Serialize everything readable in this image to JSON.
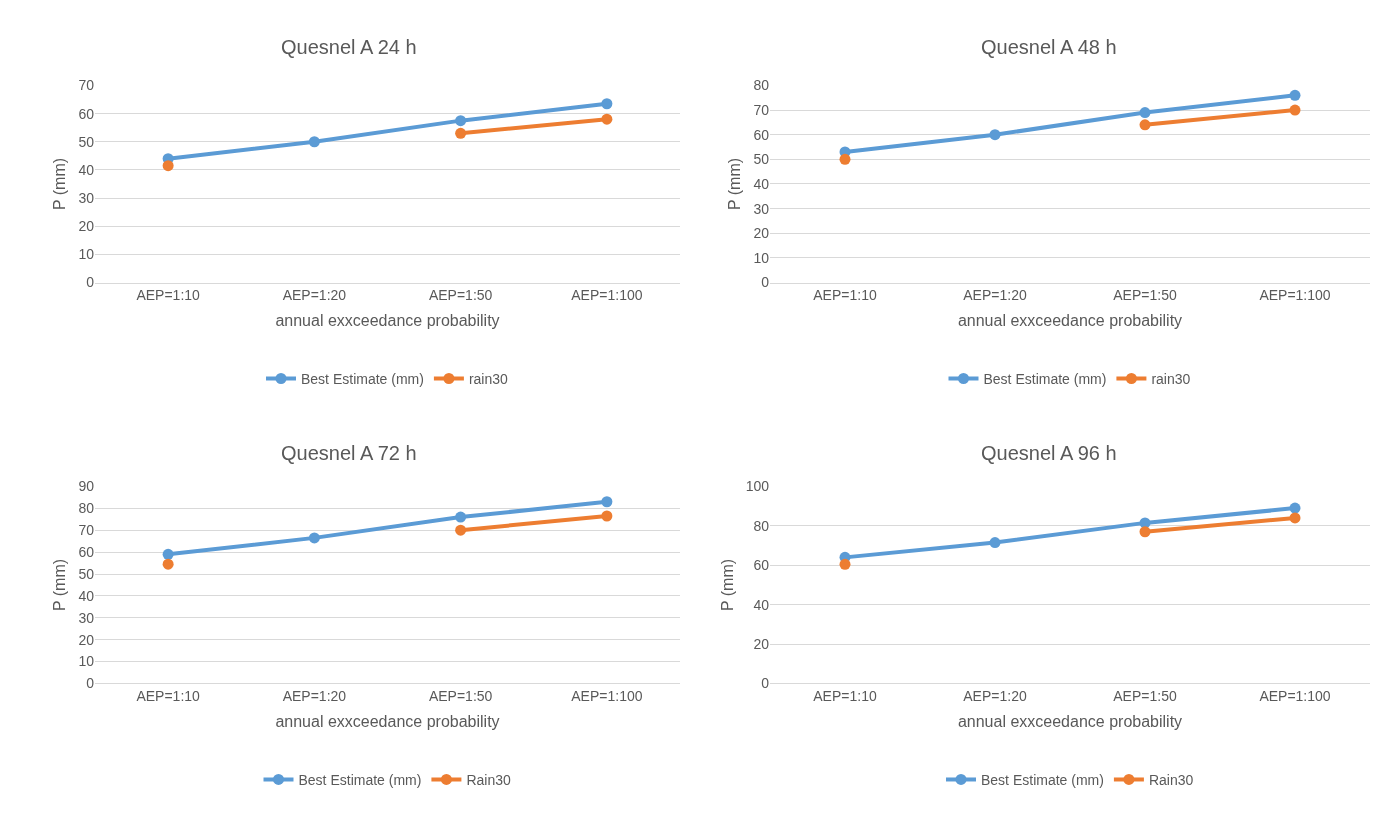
{
  "chart_data": [
    {
      "type": "line",
      "title": "Quesnel A 24 h",
      "xlabel": "annual exxceedance probability",
      "ylabel": "P (mm)",
      "categories": [
        "AEP=1:10",
        "AEP=1:20",
        "AEP=1:50",
        "AEP=1:100"
      ],
      "ylim": [
        0,
        70
      ],
      "yticks": [
        0,
        10,
        20,
        30,
        40,
        50,
        60,
        70
      ],
      "grid": "y",
      "legend": "bottom",
      "marker": "circle",
      "series": [
        {
          "name": "Best Estimate (mm)",
          "color": "#5b9bd5",
          "values": [
            44,
            50,
            57.5,
            63.5
          ]
        },
        {
          "name": "rain30",
          "color": "#ed7d31",
          "values": [
            41.5,
            null,
            53,
            58
          ]
        }
      ]
    },
    {
      "type": "line",
      "title": "Quesnel A 48 h",
      "xlabel": "annual exxceedance probability",
      "ylabel": "P (mm)",
      "categories": [
        "AEP=1:10",
        "AEP=1:20",
        "AEP=1:50",
        "AEP=1:100"
      ],
      "ylim": [
        0,
        80
      ],
      "yticks": [
        0,
        10,
        20,
        30,
        40,
        50,
        60,
        70,
        80
      ],
      "grid": "y",
      "legend": "bottom",
      "marker": "circle",
      "series": [
        {
          "name": "Best Estimate (mm)",
          "color": "#5b9bd5",
          "values": [
            53,
            60,
            69,
            76
          ]
        },
        {
          "name": "rain30",
          "color": "#ed7d31",
          "values": [
            50,
            null,
            64,
            70
          ]
        }
      ]
    },
    {
      "type": "line",
      "title": "Quesnel A 72 h",
      "xlabel": "annual exxceedance probability",
      "ylabel": "P (mm)",
      "categories": [
        "AEP=1:10",
        "AEP=1:20",
        "AEP=1:50",
        "AEP=1:100"
      ],
      "ylim": [
        0,
        90
      ],
      "yticks": [
        0,
        10,
        20,
        30,
        40,
        50,
        60,
        70,
        80,
        90
      ],
      "grid": "y",
      "legend": "bottom",
      "marker": "circle",
      "series": [
        {
          "name": "Best Estimate (mm)",
          "color": "#5b9bd5",
          "values": [
            59,
            66.5,
            76,
            83
          ]
        },
        {
          "name": "Rain30",
          "color": "#ed7d31",
          "values": [
            54.5,
            null,
            70,
            76.5
          ]
        }
      ]
    },
    {
      "type": "line",
      "title": "Quesnel A 96 h",
      "xlabel": "annual exxceedance probability",
      "ylabel": "P (mm)",
      "categories": [
        "AEP=1:10",
        "AEP=1:20",
        "AEP=1:50",
        "AEP=1:100"
      ],
      "ylim": [
        0,
        100
      ],
      "yticks": [
        0,
        20,
        40,
        60,
        80,
        100
      ],
      "grid": "y",
      "legend": "bottom",
      "marker": "circle",
      "series": [
        {
          "name": "Best Estimate (mm)",
          "color": "#5b9bd5",
          "values": [
            64,
            71.5,
            81.5,
            89
          ]
        },
        {
          "name": "Rain30",
          "color": "#ed7d31",
          "values": [
            60.5,
            null,
            77,
            84
          ]
        }
      ]
    }
  ]
}
